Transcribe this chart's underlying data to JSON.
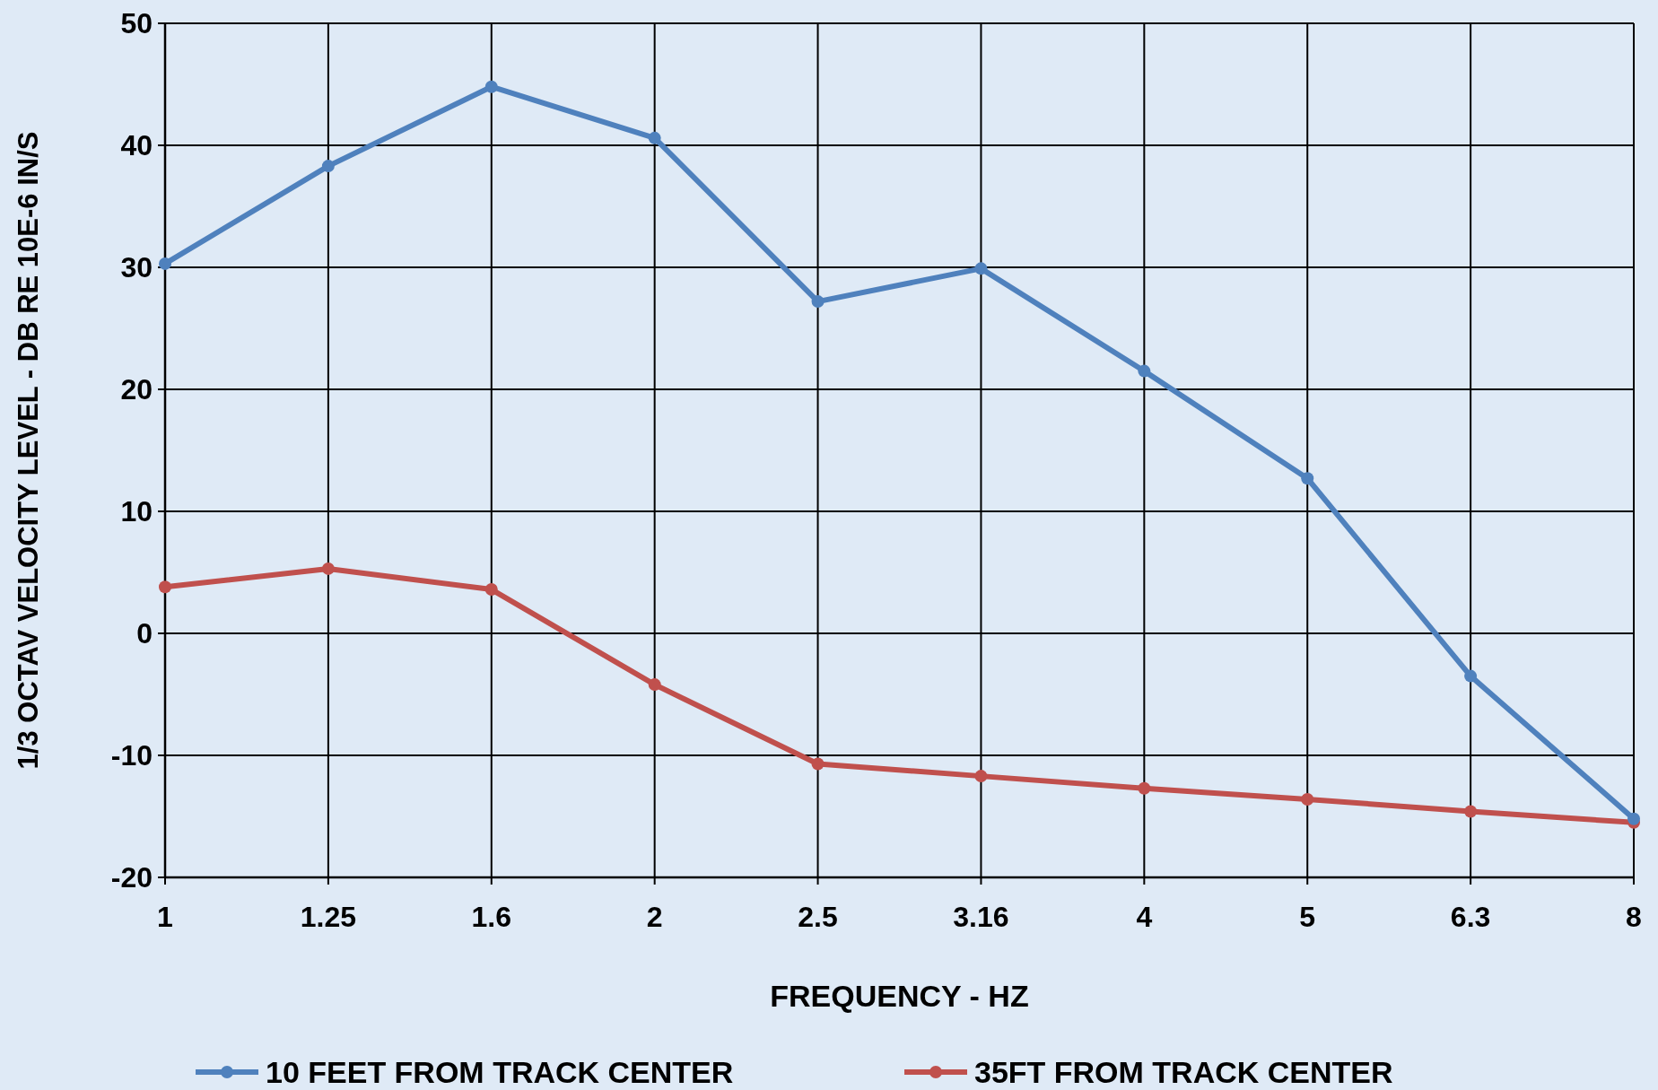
{
  "chart_data": {
    "type": "line",
    "xlabel": "FREQUENCY - HZ",
    "ylabel": "1/3 OCTAV VELOCITY LEVEL - DB RE 10E-6 IN/S",
    "categories": [
      "1",
      "1.25",
      "1.6",
      "2",
      "2.5",
      "3.16",
      "4",
      "5",
      "6.3",
      "8"
    ],
    "series": [
      {
        "name": "10 FEET FROM TRACK CENTER",
        "color": "#4f81bd",
        "values": [
          30.3,
          38.3,
          44.8,
          40.6,
          27.2,
          29.9,
          21.5,
          12.7,
          -3.5,
          -15.2
        ]
      },
      {
        "name": "35FT FROM TRACK CENTER",
        "color": "#c0504d",
        "values": [
          3.8,
          5.3,
          3.6,
          -4.2,
          -10.7,
          -11.7,
          -12.7,
          -13.6,
          -14.6,
          -15.5
        ]
      }
    ],
    "ylim": [
      -20,
      50
    ],
    "yticks": [
      -20,
      -10,
      0,
      10,
      20,
      30,
      40,
      50
    ],
    "grid": true,
    "legend": "bottom",
    "marker": "circle",
    "line_style": "solid"
  }
}
